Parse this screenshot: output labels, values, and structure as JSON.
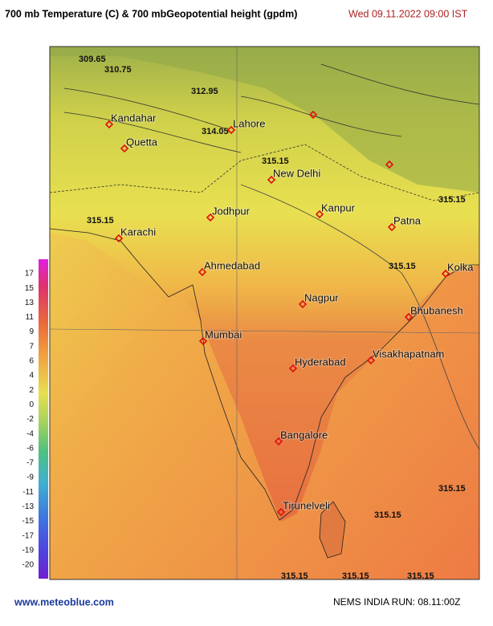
{
  "header": {
    "title": "700 mb Temperature (C)  & 700 mbGeopotential height (gpdm)",
    "date": "Wed 09.11.2022  09:00 IST"
  },
  "legend": {
    "ticks": [
      17,
      15,
      13,
      11,
      9,
      7,
      6,
      4,
      2,
      0,
      -2,
      -4,
      -6,
      -7,
      -9,
      -11,
      -13,
      -15,
      -17,
      -19,
      -20
    ]
  },
  "map": {
    "cities": [
      "Kandahar",
      "Quetta",
      "Lahore",
      "New Delhi",
      "Jodhpur",
      "Kanpur",
      "Patna",
      "Karachi",
      "Ahmedabad",
      "Kolka",
      "Nagpur",
      "Bhubanesh",
      "Mumbai",
      "Hyderabad",
      "Visakhapatnam",
      "Bangalore",
      "Tirunelveli"
    ],
    "contour_labels": [
      "309.65",
      "310.75",
      "312.95",
      "314.05",
      "315.15",
      "315.15",
      "315.15",
      "315.15",
      "315.15",
      "315.15",
      "315.15",
      "315.15",
      "315.15"
    ]
  },
  "footer": {
    "site": "www.meteoblue.com",
    "run": "NEMS INDIA   RUN: 08.11:00Z"
  }
}
